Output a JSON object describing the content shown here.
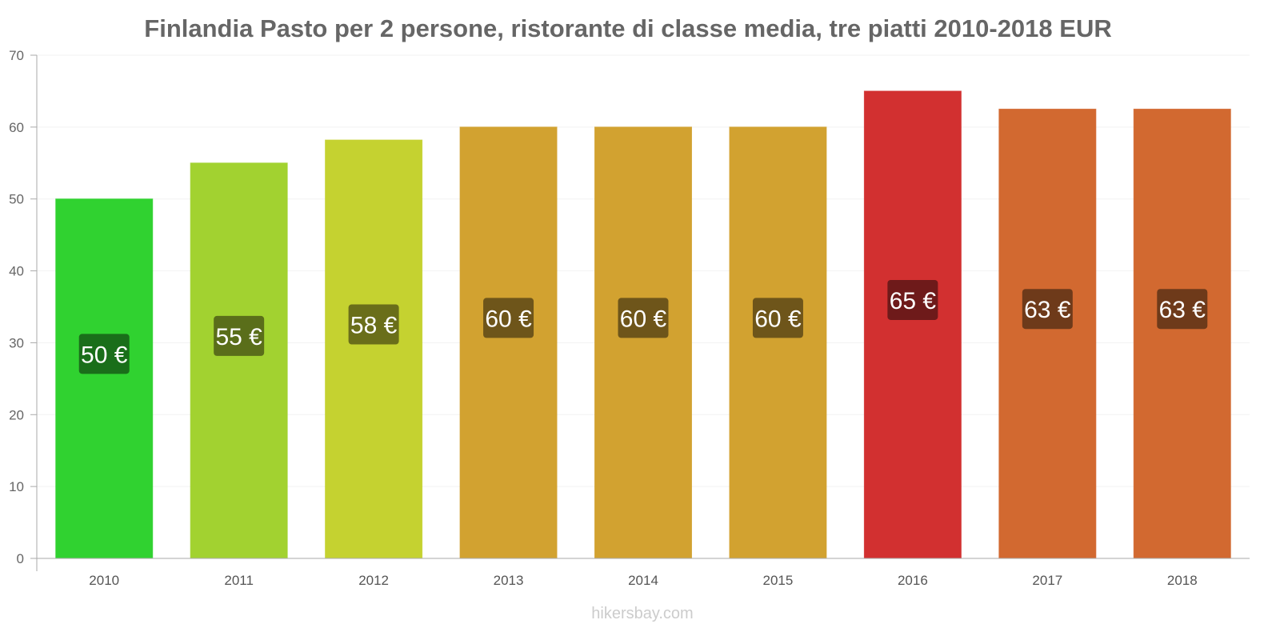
{
  "chart_data": {
    "type": "bar",
    "title": "Finlandia Pasto per 2 persone, ristorante di classe media, tre piatti 2010-2018 EUR",
    "xlabel": "",
    "ylabel": "",
    "ylim": [
      0,
      70
    ],
    "yticks": [
      0,
      10,
      20,
      30,
      40,
      50,
      60,
      70
    ],
    "grid": true,
    "categories": [
      "2010",
      "2011",
      "2012",
      "2013",
      "2014",
      "2015",
      "2016",
      "2017",
      "2018"
    ],
    "values": [
      50,
      55,
      58.2,
      60,
      60,
      60,
      65,
      62.5,
      62.5
    ],
    "labels": [
      "50 €",
      "55 €",
      "58 €",
      "60 €",
      "60 €",
      "60 €",
      "65 €",
      "63 €",
      "63 €"
    ],
    "colors": [
      "#33dd33",
      "#aadd33",
      "#cfdd33",
      "#ddaa33",
      "#ddaa33",
      "#ddaa33",
      "#dd3333",
      "#dd6e33",
      "#dd6e33"
    ],
    "label_colors": [
      "#1a6e1a",
      "#5a6e1a",
      "#6a6e1a",
      "#6e551a",
      "#6e551a",
      "#6e551a",
      "#6e1a1a",
      "#6e3a1a",
      "#6e3a1a"
    ]
  },
  "watermark": "hikersbay.com"
}
